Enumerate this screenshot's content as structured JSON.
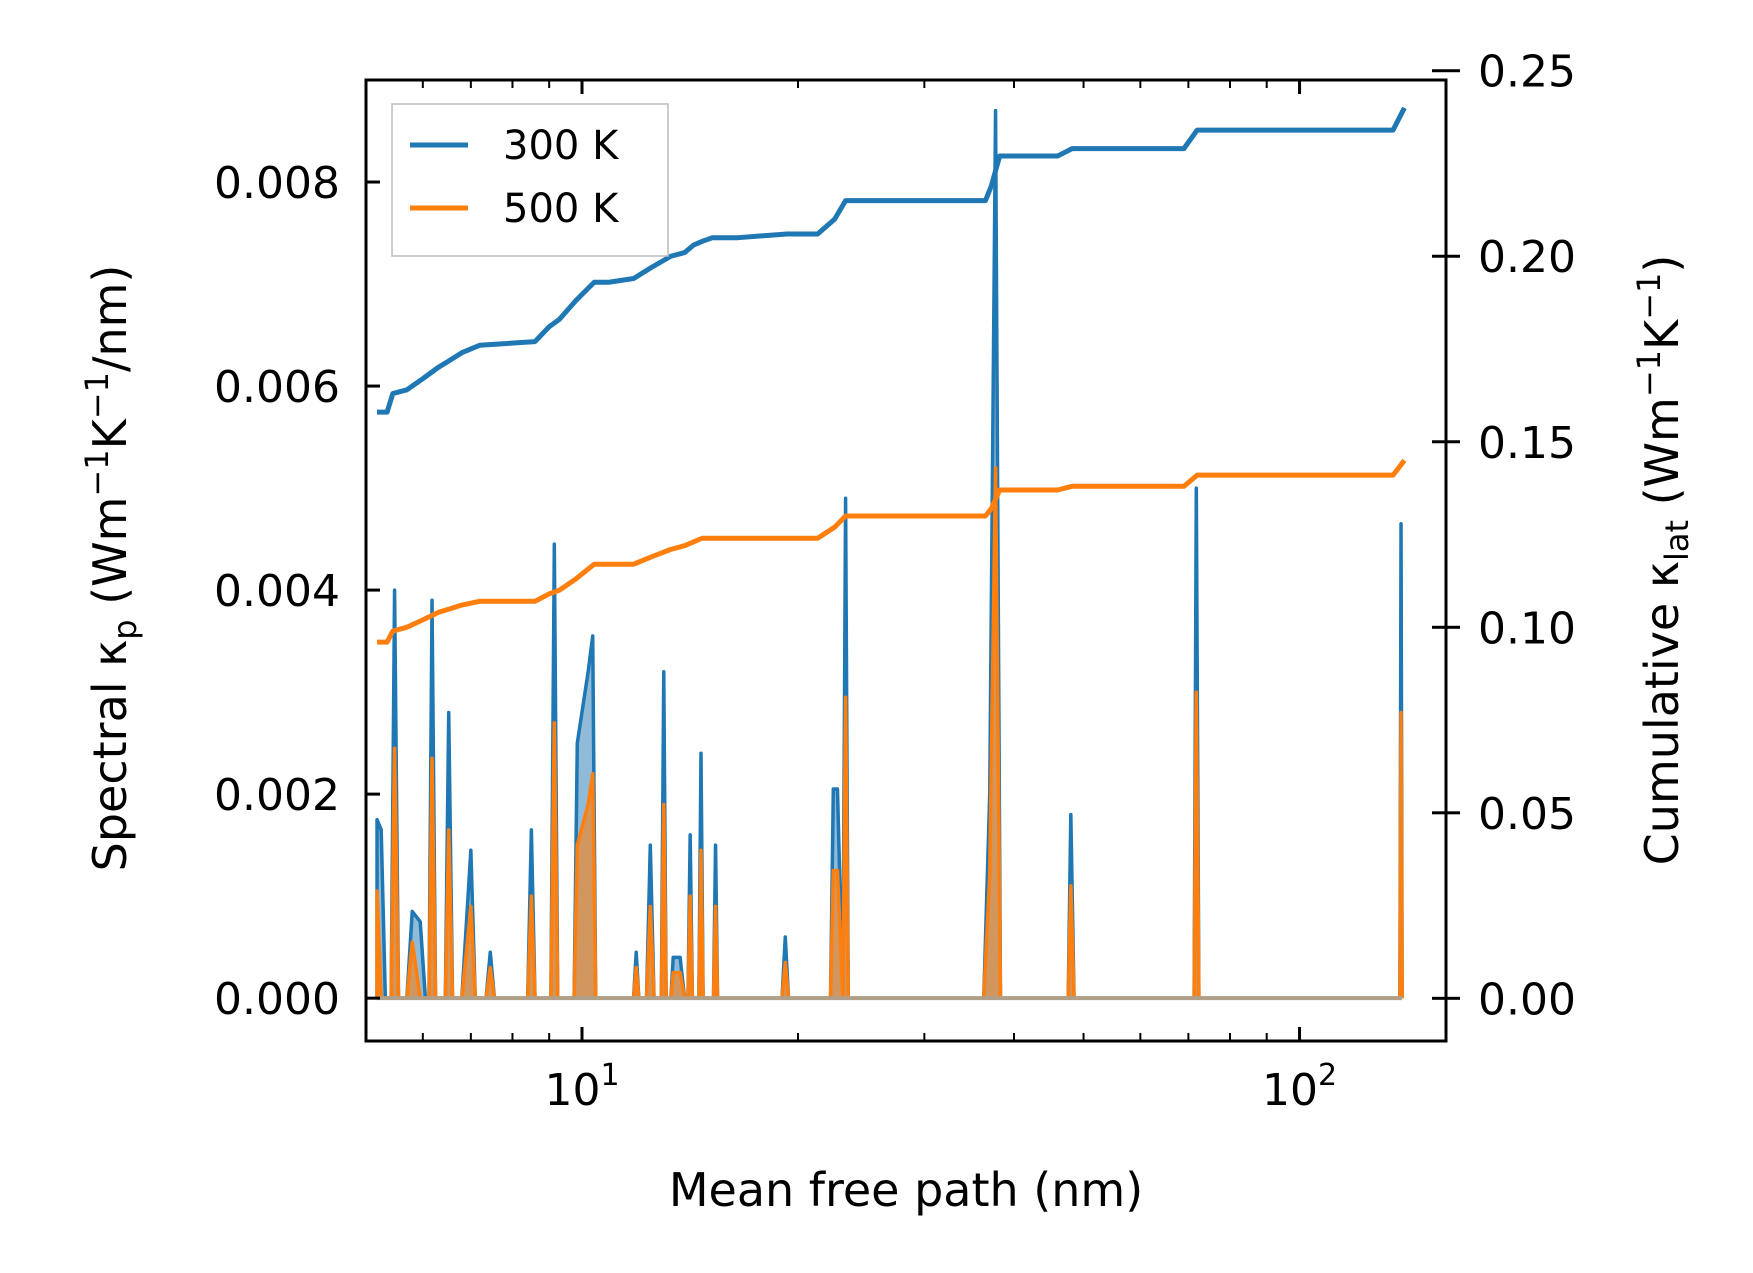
{
  "chart_data": {
    "type": "line",
    "xscale": "log",
    "xlim": [
      5.0,
      160
    ],
    "ylim_left": [
      -0.00042,
      0.009
    ],
    "ylim_right": [
      -0.0115,
      0.2475
    ],
    "xlabel": "Mean free path (nm)",
    "ylabel_left": {
      "main": "Spectral κ",
      "sub": "p",
      "unit_open": " (Wm",
      "unit_sup1": "−1",
      "unit_mid": "K",
      "unit_sup2": "−1",
      "unit_close": "/nm)"
    },
    "ylabel_right": {
      "main": "Cumulative κ",
      "sub": "lat",
      "unit_open": " (Wm",
      "unit_sup1": "−1",
      "unit_mid": "K",
      "unit_sup2": "−1",
      "unit_close": ")"
    },
    "x_ticks": [
      {
        "value": 10,
        "base": "10",
        "exp": "1"
      },
      {
        "value": 100,
        "base": "10",
        "exp": "2"
      }
    ],
    "y_left_ticks": [
      {
        "value": 0.0,
        "label": "0.000"
      },
      {
        "value": 0.002,
        "label": "0.002"
      },
      {
        "value": 0.004,
        "label": "0.004"
      },
      {
        "value": 0.006,
        "label": "0.006"
      },
      {
        "value": 0.008,
        "label": "0.008"
      }
    ],
    "y_right_ticks": [
      {
        "value": 0.0,
        "label": "0.00"
      },
      {
        "value": 0.05,
        "label": "0.05"
      },
      {
        "value": 0.1,
        "label": "0.10"
      },
      {
        "value": 0.15,
        "label": "0.15"
      },
      {
        "value": 0.2,
        "label": "0.20"
      },
      {
        "value": 0.25,
        "label": "0.25"
      }
    ],
    "legend": {
      "position": "upper-left",
      "entries": [
        {
          "label": "300 K",
          "color": "#1f77b4"
        },
        {
          "label": "500 K",
          "color": "#ff7f0e"
        }
      ]
    },
    "series": [
      {
        "name": "300 K",
        "color": "#1f77b4",
        "spectral": [
          [
            5.18,
            0.0
          ],
          [
            5.18,
            0.00175
          ],
          [
            5.25,
            0.00165
          ],
          [
            5.32,
            0.0
          ],
          [
            5.42,
            0.0
          ],
          [
            5.48,
            0.004
          ],
          [
            5.55,
            0.0
          ],
          [
            5.7,
            0.0
          ],
          [
            5.8,
            0.00085
          ],
          [
            5.95,
            0.00075
          ],
          [
            6.05,
            0.0
          ],
          [
            6.12,
            0.0
          ],
          [
            6.18,
            0.0039
          ],
          [
            6.25,
            0.0
          ],
          [
            6.45,
            0.0
          ],
          [
            6.52,
            0.0028
          ],
          [
            6.6,
            0.0
          ],
          [
            6.8,
            0.0
          ],
          [
            7.0,
            0.00145
          ],
          [
            7.1,
            0.0
          ],
          [
            7.35,
            0.0
          ],
          [
            7.45,
            0.00045
          ],
          [
            7.55,
            0.0
          ],
          [
            8.4,
            0.0
          ],
          [
            8.5,
            0.00165
          ],
          [
            8.6,
            0.0
          ],
          [
            9.05,
            0.0
          ],
          [
            9.15,
            0.00445
          ],
          [
            9.25,
            0.0
          ],
          [
            9.75,
            0.0
          ],
          [
            9.85,
            0.0025
          ],
          [
            10.2,
            0.0032
          ],
          [
            10.35,
            0.00355
          ],
          [
            10.45,
            0.0
          ],
          [
            11.8,
            0.0
          ],
          [
            11.9,
            0.00045
          ],
          [
            12.0,
            0.0
          ],
          [
            12.3,
            0.0
          ],
          [
            12.45,
            0.0015
          ],
          [
            12.6,
            0.0
          ],
          [
            12.9,
            0.0
          ],
          [
            13.0,
            0.0032
          ],
          [
            13.1,
            0.0
          ],
          [
            13.3,
            0.0
          ],
          [
            13.4,
            0.0004
          ],
          [
            13.7,
            0.0004
          ],
          [
            13.9,
            0.0
          ],
          [
            14.05,
            0.0
          ],
          [
            14.15,
            0.0016
          ],
          [
            14.25,
            0.0
          ],
          [
            14.55,
            0.0
          ],
          [
            14.65,
            0.0024
          ],
          [
            14.75,
            0.0
          ],
          [
            15.25,
            0.0
          ],
          [
            15.35,
            0.0015
          ],
          [
            15.45,
            0.0
          ],
          [
            19.0,
            0.0
          ],
          [
            19.2,
            0.0006
          ],
          [
            19.4,
            0.0
          ],
          [
            22.2,
            0.0
          ],
          [
            22.4,
            0.00205
          ],
          [
            22.7,
            0.00205
          ],
          [
            23.1,
            0.0
          ],
          [
            23.3,
            0.0049
          ],
          [
            23.5,
            0.0
          ],
          [
            36.3,
            0.0
          ],
          [
            37.0,
            0.002
          ],
          [
            37.7,
            0.0087
          ],
          [
            38.3,
            0.0
          ],
          [
            47.6,
            0.0
          ],
          [
            48.0,
            0.0018
          ],
          [
            48.5,
            0.0
          ],
          [
            71.3,
            0.0
          ],
          [
            71.8,
            0.005
          ],
          [
            72.4,
            0.0
          ],
          [
            138.0,
            0.0
          ],
          [
            138.5,
            0.00465
          ],
          [
            139.0,
            0.0
          ]
        ],
        "cumulative": [
          [
            5.18,
            0.158
          ],
          [
            5.35,
            0.158
          ],
          [
            5.45,
            0.163
          ],
          [
            5.7,
            0.164
          ],
          [
            6.0,
            0.167
          ],
          [
            6.3,
            0.17
          ],
          [
            6.55,
            0.172
          ],
          [
            6.8,
            0.174
          ],
          [
            7.2,
            0.176
          ],
          [
            8.6,
            0.177
          ],
          [
            9.0,
            0.181
          ],
          [
            9.3,
            0.183
          ],
          [
            9.8,
            0.188
          ],
          [
            10.4,
            0.193
          ],
          [
            10.9,
            0.193
          ],
          [
            11.8,
            0.194
          ],
          [
            12.5,
            0.197
          ],
          [
            13.3,
            0.2
          ],
          [
            13.9,
            0.201
          ],
          [
            14.3,
            0.203
          ],
          [
            14.7,
            0.204
          ],
          [
            15.2,
            0.205
          ],
          [
            16.5,
            0.205
          ],
          [
            19.3,
            0.206
          ],
          [
            21.3,
            0.206
          ],
          [
            22.5,
            0.21
          ],
          [
            23.3,
            0.215
          ],
          [
            28.0,
            0.215
          ],
          [
            36.5,
            0.215
          ],
          [
            37.2,
            0.219
          ],
          [
            38.2,
            0.227
          ],
          [
            46.0,
            0.227
          ],
          [
            48.2,
            0.229
          ],
          [
            60.0,
            0.229
          ],
          [
            69.0,
            0.229
          ],
          [
            72.0,
            0.234
          ],
          [
            100.0,
            0.234
          ],
          [
            135.0,
            0.234
          ],
          [
            140.0,
            0.24
          ]
        ]
      },
      {
        "name": "500 K",
        "color": "#ff7f0e",
        "spectral": [
          [
            5.18,
            0.0
          ],
          [
            5.18,
            0.00105
          ],
          [
            5.25,
            0.0
          ],
          [
            5.42,
            0.0
          ],
          [
            5.48,
            0.00245
          ],
          [
            5.55,
            0.0
          ],
          [
            5.7,
            0.0
          ],
          [
            5.8,
            0.00055
          ],
          [
            5.95,
            0.0
          ],
          [
            6.12,
            0.0
          ],
          [
            6.18,
            0.00235
          ],
          [
            6.25,
            0.0
          ],
          [
            6.45,
            0.0
          ],
          [
            6.52,
            0.00165
          ],
          [
            6.6,
            0.0
          ],
          [
            6.8,
            0.0
          ],
          [
            7.0,
            0.0009
          ],
          [
            7.1,
            0.0
          ],
          [
            7.35,
            0.0
          ],
          [
            7.45,
            0.0003
          ],
          [
            7.55,
            0.0
          ],
          [
            8.4,
            0.0
          ],
          [
            8.5,
            0.001
          ],
          [
            8.6,
            0.0
          ],
          [
            9.05,
            0.0
          ],
          [
            9.15,
            0.0027
          ],
          [
            9.25,
            0.0
          ],
          [
            9.75,
            0.0
          ],
          [
            9.85,
            0.0015
          ],
          [
            10.2,
            0.0019
          ],
          [
            10.35,
            0.0022
          ],
          [
            10.45,
            0.0
          ],
          [
            11.8,
            0.0
          ],
          [
            11.9,
            0.0003
          ],
          [
            12.0,
            0.0
          ],
          [
            12.3,
            0.0
          ],
          [
            12.45,
            0.0009
          ],
          [
            12.6,
            0.0
          ],
          [
            12.9,
            0.0
          ],
          [
            13.0,
            0.0019
          ],
          [
            13.1,
            0.0
          ],
          [
            13.3,
            0.0
          ],
          [
            13.4,
            0.00025
          ],
          [
            13.7,
            0.00025
          ],
          [
            13.9,
            0.0
          ],
          [
            14.05,
            0.0
          ],
          [
            14.15,
            0.001
          ],
          [
            14.25,
            0.0
          ],
          [
            14.55,
            0.0
          ],
          [
            14.65,
            0.00145
          ],
          [
            14.75,
            0.0
          ],
          [
            15.25,
            0.0
          ],
          [
            15.35,
            0.0009
          ],
          [
            15.45,
            0.0
          ],
          [
            19.0,
            0.0
          ],
          [
            19.2,
            0.00035
          ],
          [
            19.4,
            0.0
          ],
          [
            22.2,
            0.0
          ],
          [
            22.4,
            0.00125
          ],
          [
            22.7,
            0.00125
          ],
          [
            23.1,
            0.0
          ],
          [
            23.3,
            0.00295
          ],
          [
            23.5,
            0.0
          ],
          [
            36.3,
            0.0
          ],
          [
            37.0,
            0.0012
          ],
          [
            37.7,
            0.0052
          ],
          [
            38.3,
            0.0
          ],
          [
            47.6,
            0.0
          ],
          [
            48.0,
            0.0011
          ],
          [
            48.5,
            0.0
          ],
          [
            71.3,
            0.0
          ],
          [
            71.8,
            0.003
          ],
          [
            72.4,
            0.0
          ],
          [
            138.0,
            0.0
          ],
          [
            138.5,
            0.0028
          ],
          [
            139.0,
            0.0
          ]
        ],
        "cumulative": [
          [
            5.18,
            0.096
          ],
          [
            5.35,
            0.096
          ],
          [
            5.45,
            0.099
          ],
          [
            5.7,
            0.1
          ],
          [
            6.0,
            0.102
          ],
          [
            6.3,
            0.104
          ],
          [
            6.55,
            0.105
          ],
          [
            6.8,
            0.106
          ],
          [
            7.2,
            0.107
          ],
          [
            8.6,
            0.107
          ],
          [
            9.0,
            0.109
          ],
          [
            9.3,
            0.11
          ],
          [
            9.8,
            0.113
          ],
          [
            10.4,
            0.117
          ],
          [
            10.9,
            0.117
          ],
          [
            11.8,
            0.117
          ],
          [
            12.5,
            0.119
          ],
          [
            13.3,
            0.121
          ],
          [
            13.9,
            0.122
          ],
          [
            14.3,
            0.123
          ],
          [
            14.7,
            0.124
          ],
          [
            15.2,
            0.124
          ],
          [
            16.5,
            0.124
          ],
          [
            19.3,
            0.124
          ],
          [
            21.3,
            0.124
          ],
          [
            22.5,
            0.127
          ],
          [
            23.3,
            0.13
          ],
          [
            28.0,
            0.13
          ],
          [
            36.5,
            0.13
          ],
          [
            37.2,
            0.132
          ],
          [
            38.2,
            0.137
          ],
          [
            46.0,
            0.137
          ],
          [
            48.2,
            0.138
          ],
          [
            60.0,
            0.138
          ],
          [
            69.0,
            0.138
          ],
          [
            72.0,
            0.141
          ],
          [
            100.0,
            0.141
          ],
          [
            135.0,
            0.141
          ],
          [
            140.0,
            0.145
          ]
        ]
      }
    ]
  }
}
